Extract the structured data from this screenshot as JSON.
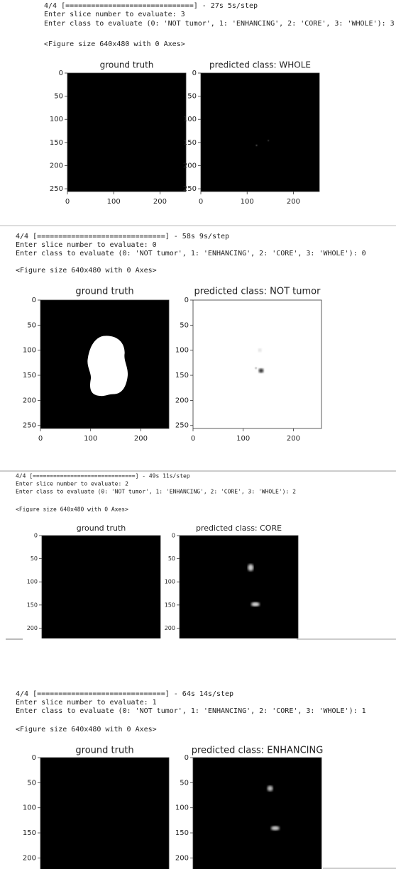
{
  "panels": [
    {
      "lines": [
        "4/4 [==============================] - 27s 5s/step",
        "Enter slice number to evaluate: 3",
        "Enter class to evaluate (0: 'NOT tumor', 1: 'ENHANCING', 2: 'CORE', 3: 'WHOLE'): 3"
      ],
      "figure": "<Figure size 640x480 with 0 Axes>",
      "plots": [
        {
          "title": "ground truth",
          "yticks": [
            "0",
            "50",
            "100",
            "150",
            "200",
            "250"
          ],
          "xticks": [
            "0",
            "100",
            "200"
          ]
        },
        {
          "title": "predicted class: WHOLE",
          "yticks": [
            "0",
            "50",
            "100",
            "150",
            "200",
            "250"
          ],
          "xticks": [
            "0",
            "100",
            "200"
          ]
        }
      ]
    },
    {
      "lines": [
        "4/4 [==============================] - 58s 9s/step",
        "Enter slice number to evaluate: 0",
        "Enter class to evaluate (0: 'NOT tumor', 1: 'ENHANCING', 2: 'CORE', 3: 'WHOLE'): 0"
      ],
      "figure": "<Figure size 640x480 with 0 Axes>",
      "plots": [
        {
          "title": "ground truth",
          "yticks": [
            "0",
            "50",
            "100",
            "150",
            "200",
            "250"
          ],
          "xticks": [
            "0",
            "100",
            "200"
          ]
        },
        {
          "title": "predicted class: NOT tumor",
          "yticks": [
            "0",
            "50",
            "100",
            "150",
            "200",
            "250"
          ],
          "xticks": [
            "0",
            "100",
            "200"
          ]
        }
      ]
    },
    {
      "lines": [
        "4/4 [==============================] - 49s 11s/step",
        "Enter slice number to evaluate: 2",
        "Enter class to evaluate (0: 'NOT tumor', 1: 'ENHANCING', 2: 'CORE', 3: 'WHOLE'): 2"
      ],
      "figure": "<Figure size 640x480 with 0 Axes>",
      "plots": [
        {
          "title": "ground truth",
          "yticks": [
            "0",
            "50",
            "100",
            "150",
            "200"
          ],
          "xticks": []
        },
        {
          "title": "predicted class: CORE",
          "yticks": [
            "0",
            "50",
            "100",
            "150",
            "200"
          ],
          "xticks": []
        }
      ]
    },
    {
      "lines": [
        "4/4 [==============================] - 64s 14s/step",
        "Enter slice number to evaluate: 1",
        "Enter class to evaluate (0: 'NOT tumor', 1: 'ENHANCING', 2: 'CORE', 3: 'WHOLE'): 1"
      ],
      "figure": "<Figure size 640x480 with 0 Axes>",
      "plots": [
        {
          "title": "ground truth",
          "yticks": [
            "0",
            "50",
            "100",
            "150",
            "200"
          ],
          "xticks": []
        },
        {
          "title": "predicted class: ENHANCING",
          "yticks": [
            "0",
            "50",
            "100",
            "150",
            "200"
          ],
          "xticks": []
        }
      ]
    }
  ]
}
